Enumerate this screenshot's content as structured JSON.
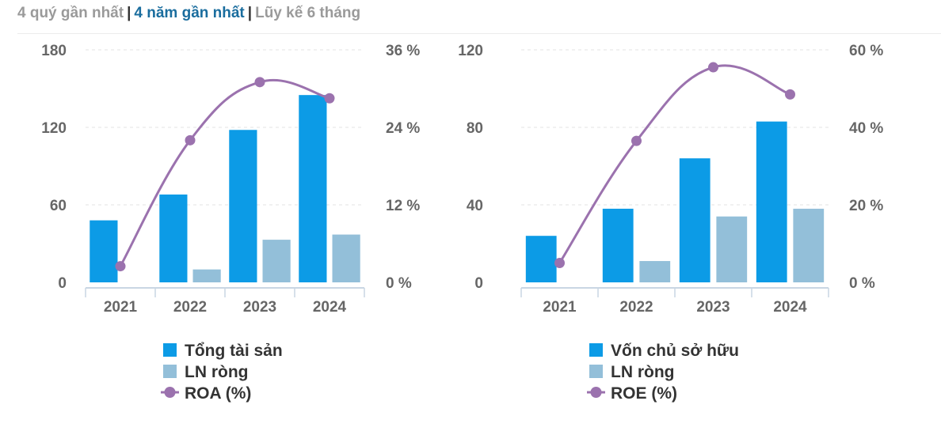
{
  "tabs": [
    {
      "label": "4 quý gần nhất",
      "active": false
    },
    {
      "label": "4 năm gần nhất",
      "active": true
    },
    {
      "label": "Lũy kế 6 tháng",
      "active": false
    }
  ],
  "colors": {
    "bar1": "#0c9be6",
    "bar2": "#93bfd9",
    "line": "#9b72ae"
  },
  "chart_data": [
    {
      "type": "bar",
      "categories": [
        "2021",
        "2022",
        "2023",
        "2024"
      ],
      "series": [
        {
          "name": "Tổng tài sản",
          "kind": "bar",
          "axis": "left",
          "values": [
            48,
            68,
            118,
            145
          ]
        },
        {
          "name": "LN ròng",
          "kind": "bar",
          "axis": "left",
          "values": [
            null,
            10,
            33,
            37
          ]
        },
        {
          "name": "ROA (%)",
          "kind": "line",
          "axis": "right",
          "values": [
            2.5,
            22,
            31,
            28.5
          ]
        }
      ],
      "left_axis": {
        "min": 0,
        "max": 180,
        "ticks": [
          "0",
          "60",
          "120",
          "180"
        ]
      },
      "right_axis": {
        "min": 0,
        "max": 36,
        "ticks": [
          "0 %",
          "12 %",
          "24 %",
          "36 %"
        ]
      },
      "legend": "bottom"
    },
    {
      "type": "bar",
      "categories": [
        "2021",
        "2022",
        "2023",
        "2024"
      ],
      "series": [
        {
          "name": "Vốn chủ sở hữu",
          "kind": "bar",
          "axis": "left",
          "values": [
            24,
            38,
            64,
            83
          ]
        },
        {
          "name": "LN ròng",
          "kind": "bar",
          "axis": "left",
          "values": [
            null,
            11,
            34,
            38
          ]
        },
        {
          "name": "ROE (%)",
          "kind": "line",
          "axis": "right",
          "values": [
            5,
            36.5,
            55.5,
            48.5
          ]
        }
      ],
      "left_axis": {
        "min": 0,
        "max": 120,
        "ticks": [
          "0",
          "40",
          "80",
          "120"
        ]
      },
      "right_axis": {
        "min": 0,
        "max": 60,
        "ticks": [
          "0 %",
          "20 %",
          "40 %",
          "60 %"
        ]
      },
      "legend": "bottom"
    }
  ]
}
